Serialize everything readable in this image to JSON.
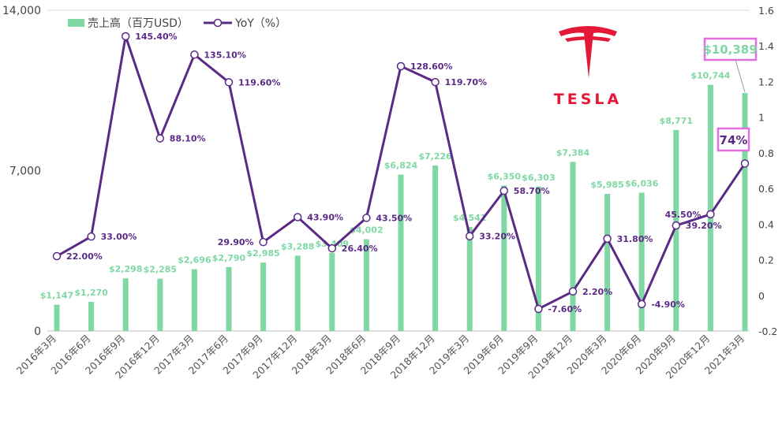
{
  "chart_data": {
    "type": "bar+line",
    "categories": [
      "2016年3月",
      "2016年6月",
      "2016年9月",
      "2016年12月",
      "2017年3月",
      "2017年6月",
      "2017年9月",
      "2017年12月",
      "2018年3月",
      "2018年6月",
      "2018年9月",
      "2018年12月",
      "2019年3月",
      "2019年6月",
      "2019年9月",
      "2019年12月",
      "2020年3月",
      "2020年6月",
      "2020年9月",
      "2020年12月",
      "2021年3月"
    ],
    "series": [
      {
        "name": "売上高（百万USD）",
        "type": "bar",
        "axis": "left",
        "color": "#7fd8a4",
        "values": [
          1147,
          1270,
          2298,
          2285,
          2696,
          2790,
          2985,
          3288,
          3409,
          4002,
          6824,
          7226,
          4541,
          6350,
          6303,
          7384,
          5985,
          6036,
          8771,
          10744,
          10389
        ],
        "labels": [
          "$1,147",
          "$1,270",
          "$2,298",
          "$2,285",
          "$2,696",
          "$2,790",
          "$2,985",
          "$3,288",
          "$3,409",
          "$4,002",
          "$6,824",
          "$7,226",
          "$4,541",
          "$6,350",
          "$6,303",
          "$7,384",
          "$5,985",
          "$6,036",
          "$8,771",
          "$10,744",
          "$10,389"
        ]
      },
      {
        "name": "YoY（%）",
        "type": "line",
        "axis": "right",
        "color": "#5b2a86",
        "values": [
          0.22,
          0.33,
          1.454,
          0.881,
          1.351,
          1.196,
          0.299,
          0.439,
          0.264,
          0.435,
          1.286,
          1.197,
          0.332,
          0.587,
          -0.076,
          0.022,
          0.318,
          -0.049,
          0.392,
          0.455,
          0.74
        ],
        "labels": [
          "22.00%",
          "33.00%",
          "145.40%",
          "88.10%",
          "135.10%",
          "119.60%",
          "29.90%",
          "43.90%",
          "26.40%",
          "43.50%",
          "128.60%",
          "119.70%",
          "33.20%",
          "58.70%",
          "-7.60%",
          "2.20%",
          "31.80%",
          "-4.90%",
          "39.20%",
          "45.50%",
          "74%"
        ]
      }
    ],
    "y_left": {
      "min": 0,
      "max": 14000,
      "ticks": [
        "0",
        "7,000",
        "14,000"
      ],
      "tick_values": [
        0,
        7000,
        14000
      ]
    },
    "y_right": {
      "min": -0.2,
      "max": 1.6,
      "ticks": [
        "-0.2",
        "0",
        "0.2",
        "0.4",
        "0.6",
        "0.8",
        "1",
        "1.2",
        "1.4",
        "1.6"
      ],
      "tick_values": [
        -0.2,
        0,
        0.2,
        0.4,
        0.6,
        0.8,
        1,
        1.2,
        1.4,
        1.6
      ]
    },
    "highlight": {
      "bar_label": "$10,389",
      "line_label": "74%",
      "color": "#e070e0"
    },
    "legend_position": "top-left",
    "grid": "top-line-only"
  },
  "logo": {
    "wordmark": "TESLA",
    "color": "#e31937"
  }
}
